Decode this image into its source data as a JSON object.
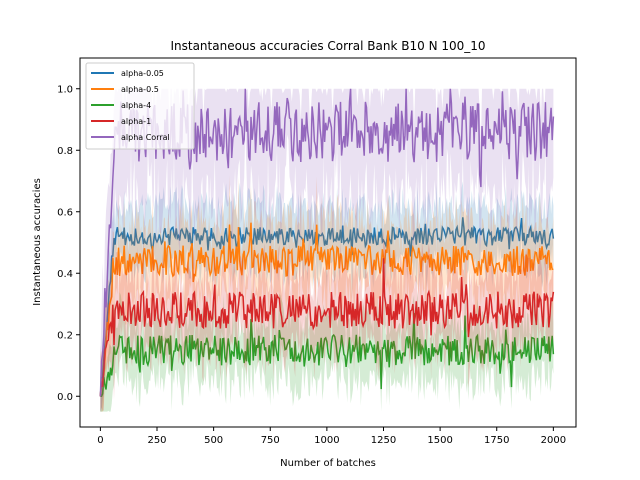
{
  "chart_data": {
    "type": "line",
    "title": "Instantaneous accuracies Corral Bank B10 N 100_10",
    "xlabel": "Number of batches",
    "ylabel": "Instantaneous accuracies",
    "xlim": [
      -90,
      2100
    ],
    "ylim": [
      -0.1,
      1.1
    ],
    "xticks": [
      0,
      250,
      500,
      750,
      1000,
      1250,
      1500,
      1750,
      2000
    ],
    "yticks": [
      0.0,
      0.2,
      0.4,
      0.6,
      0.8,
      1.0
    ],
    "ytick_labels": [
      "0.0",
      "0.2",
      "0.4",
      "0.6",
      "0.8",
      "1.0"
    ],
    "grid": false,
    "legend_position": "top-left",
    "x_range": [
      0,
      2000
    ],
    "series": [
      {
        "name": "alpha-0.05",
        "color": "#1f77b4",
        "mean": 0.52,
        "spread": 0.03,
        "band": 0.1,
        "noise_seed": 11
      },
      {
        "name": "alpha-0.5",
        "color": "#ff7f0e",
        "mean": 0.44,
        "spread": 0.05,
        "band": 0.12,
        "noise_seed": 23
      },
      {
        "name": "alpha-4",
        "color": "#2ca02c",
        "mean": 0.15,
        "spread": 0.05,
        "band": 0.1,
        "noise_seed": 37
      },
      {
        "name": "alpha-1",
        "color": "#d62728",
        "mean": 0.28,
        "spread": 0.06,
        "band": 0.12,
        "noise_seed": 41
      },
      {
        "name": "alpha Corral",
        "color": "#9467bd",
        "mean": 0.86,
        "spread": 0.1,
        "band": 0.22,
        "noise_seed": 53
      }
    ]
  }
}
